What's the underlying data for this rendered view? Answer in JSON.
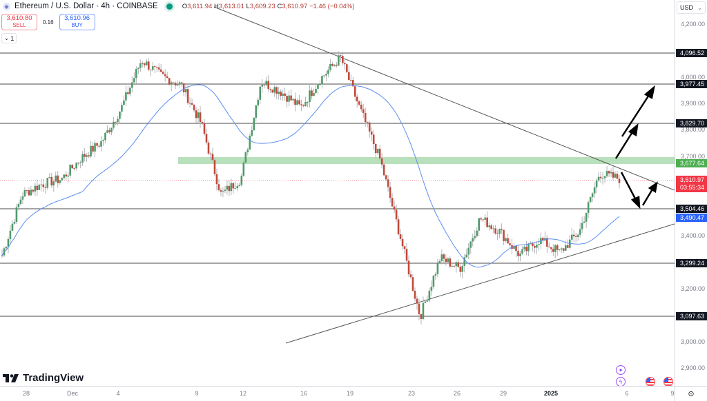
{
  "header": {
    "symbol_title": "Ethereum / U.S. Dollar · 4h · COINBASE",
    "market_status": "open",
    "ohlc": {
      "open_label": "O",
      "open": "3,611.94",
      "high_label": "H",
      "high": "3,613.01",
      "low_label": "L",
      "low": "3,609.23",
      "close_label": "C",
      "close": "3,610.97",
      "change": "−1.46 (−0.04%)"
    }
  },
  "trade": {
    "sell_price": "3,610.80",
    "sell_label": "SELL",
    "spread": "0.16",
    "buy_price": "3,610.96",
    "buy_label": "BUY"
  },
  "indicators_toggle": {
    "count": "1"
  },
  "price_scale": {
    "currency": "USD",
    "ticks": [
      "4,200.00",
      "4,000.00",
      "3,900.00",
      "3,800.00",
      "3,700.00",
      "3,400.00",
      "3,200.00",
      "3,000.00",
      "2,900.00"
    ],
    "labels": [
      {
        "value": "4,096.52",
        "type": "horizontal-line"
      },
      {
        "value": "3,977.45",
        "type": "horizontal-line"
      },
      {
        "value": "3,829.70",
        "type": "horizontal-line"
      },
      {
        "value": "3,677.64",
        "type": "zone"
      },
      {
        "value": "3,610.97",
        "countdown": "03:55:34",
        "type": "last-price"
      },
      {
        "value": "3,504.46",
        "type": "horizontal-line"
      },
      {
        "value": "3,490.47",
        "type": "moving-average"
      },
      {
        "value": "3,299.24",
        "type": "horizontal-line"
      },
      {
        "value": "3,097.63",
        "type": "horizontal-line"
      }
    ]
  },
  "time_scale": {
    "ticks": [
      "28",
      "Dec",
      "4",
      "9",
      "12",
      "16",
      "19",
      "23",
      "26",
      "29",
      "2025",
      "6",
      "9"
    ]
  },
  "branding": {
    "logo_text": "TradingView"
  },
  "colors": {
    "up": "#26a69a",
    "down": "#c0392b",
    "ma": "#2962ff",
    "zone": "#4caf50",
    "last_price": "#f23645"
  },
  "chart_data": {
    "type": "candlestick",
    "title": "Ethereum / U.S. Dollar · 4h · COINBASE",
    "xlabel": "",
    "ylabel": "USD",
    "ylim": [
      2850,
      4250
    ],
    "x_ticks": [
      "28",
      "Dec",
      "4",
      "9",
      "12",
      "16",
      "19",
      "23",
      "26",
      "29",
      "2025",
      "6",
      "9"
    ],
    "horizontal_levels": [
      4096.52,
      3977.45,
      3829.7,
      3504.46,
      3299.24,
      3097.63
    ],
    "zone": {
      "low": 3660,
      "high": 3700,
      "label": "3,677.64"
    },
    "last_price": 3610.97,
    "moving_average_last": 3490.47,
    "trendlines": [
      {
        "name": "descending-resistance",
        "from": [
          "Nov 20",
          4300
        ],
        "to": [
          "Jan 9",
          3620
        ]
      },
      {
        "name": "ascending-support",
        "from": [
          "Dec 17",
          2980
        ],
        "to": [
          "Jan 9",
          3450
        ]
      }
    ],
    "scenario_arrows": [
      "breakout up to 3,829.70 then 3,977.45",
      "pullback to 3,504.46 then rebound"
    ],
    "approx_closes": [
      3330,
      3560,
      3600,
      3620,
      3700,
      3760,
      3890,
      4070,
      4010,
      3975,
      3830,
      3560,
      3620,
      3990,
      3950,
      3890,
      4000,
      4080,
      3880,
      3690,
      3400,
      3097,
      3320,
      3280,
      3470,
      3420,
      3330,
      3390,
      3340,
      3420,
      3640,
      3620
    ]
  }
}
